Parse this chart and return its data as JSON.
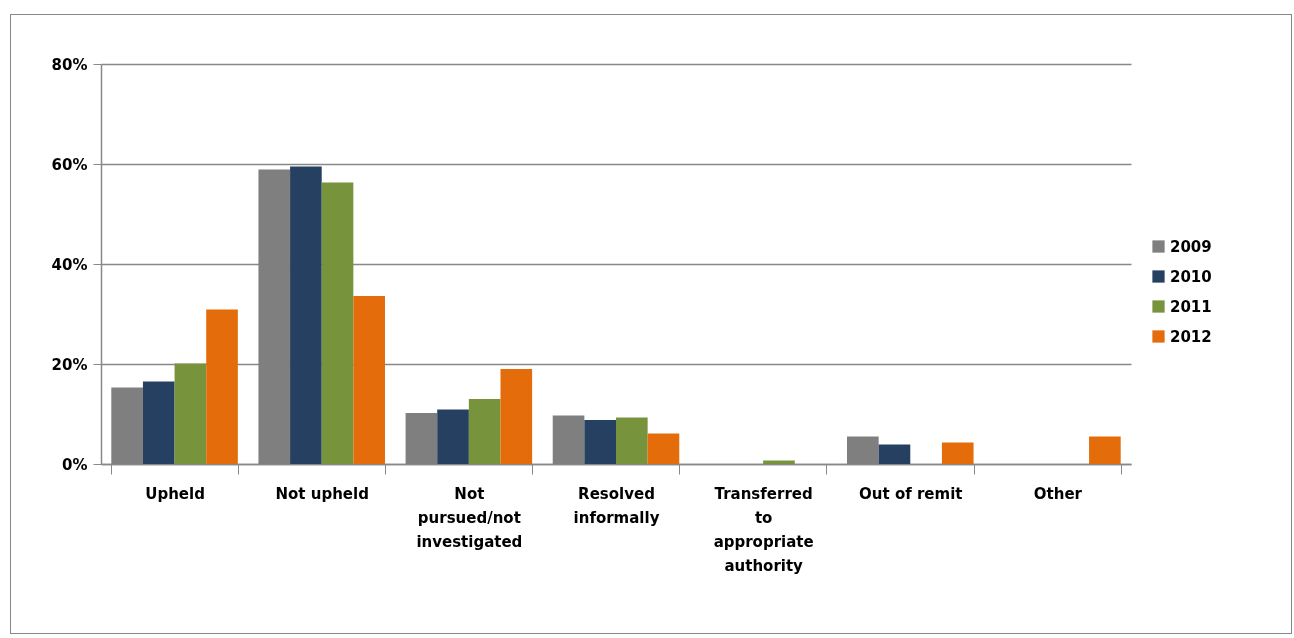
{
  "chart_data": {
    "type": "bar",
    "categories": [
      "Upheld",
      "Not upheld",
      "Not pursued/not investigated",
      "Resolved informally",
      "Transferred to appropriate authority",
      "Out of remit",
      "Other"
    ],
    "series": [
      {
        "name": "2009",
        "color": "#7f7f7f",
        "values": [
          15.3,
          58.9,
          10.2,
          9.7,
          0,
          5.5,
          0
        ]
      },
      {
        "name": "2010",
        "color": "#254061",
        "values": [
          16.5,
          59.5,
          10.9,
          8.8,
          0,
          3.9,
          0
        ]
      },
      {
        "name": "2011",
        "color": "#77933c",
        "values": [
          20.1,
          56.3,
          13.0,
          9.3,
          0.7,
          0,
          0
        ]
      },
      {
        "name": "2012",
        "color": "#e46c0a",
        "values": [
          30.9,
          33.6,
          19.0,
          6.1,
          0,
          4.3,
          5.5
        ]
      }
    ],
    "ylim": [
      0,
      80
    ],
    "yticks": [
      {
        "value": 0,
        "label": "0%"
      },
      {
        "value": 20,
        "label": "20%"
      },
      {
        "value": 40,
        "label": "40%"
      },
      {
        "value": 60,
        "label": "60%"
      },
      {
        "value": 80,
        "label": "80%"
      }
    ],
    "grid": "y",
    "legend": "right"
  }
}
